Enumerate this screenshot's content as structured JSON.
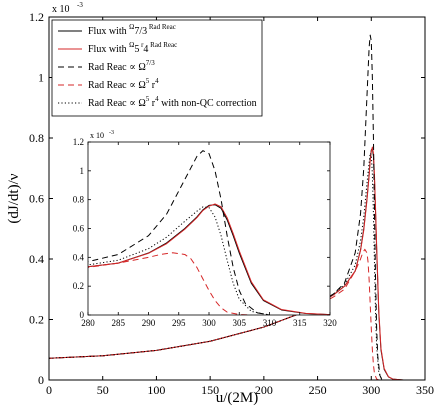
{
  "chart_data": [
    {
      "type": "line",
      "xlabel": "u/(2M)",
      "ylabel": "(dJ/dt)/ν",
      "y_exponent_label": "x 10",
      "y_exponent_power": "-3",
      "xlim": [
        0,
        350
      ],
      "ylim": [
        0,
        1.2
      ],
      "x_ticks": [
        "0",
        "50",
        "100",
        "150",
        "200",
        "250",
        "300",
        "350"
      ],
      "y_ticks": [
        "0",
        "0.2",
        "0.4",
        "0.6",
        "0.8",
        "1",
        "1.2"
      ],
      "legend_position": "top-left",
      "series": [
        {
          "name": "Flux with Ω^7/3 Rad Reac",
          "legend_parts": [
            "Flux with ",
            "Ω",
            "7/3",
            " Rad Reac"
          ],
          "color": "#000000",
          "dash": "solid",
          "x": [
            0,
            50,
            100,
            150,
            200,
            230,
            250,
            265,
            275,
            285,
            290,
            293,
            296,
            298,
            299,
            300,
            301,
            302,
            303,
            304,
            305,
            307,
            309,
            312,
            316,
            320,
            330
          ],
          "y": [
            0.072,
            0.08,
            0.098,
            0.128,
            0.175,
            0.215,
            0.25,
            0.282,
            0.31,
            0.36,
            0.43,
            0.5,
            0.6,
            0.68,
            0.73,
            0.76,
            0.765,
            0.74,
            0.66,
            0.55,
            0.43,
            0.22,
            0.1,
            0.035,
            0.01,
            0.003,
            0.0
          ]
        },
        {
          "name": "Flux with Ω^5 r^4 Rad Reac",
          "legend_parts": [
            "Flux with ",
            "Ω",
            "5",
            " r",
            "4",
            " Rad Reac"
          ],
          "color": "#d62728",
          "dash": "solid",
          "x": [
            0,
            50,
            100,
            150,
            200,
            230,
            250,
            265,
            275,
            285,
            290,
            293,
            296,
            298,
            299,
            300,
            301,
            302,
            303,
            304,
            305,
            307,
            309,
            312,
            316,
            320,
            330
          ],
          "y": [
            0.072,
            0.08,
            0.098,
            0.128,
            0.175,
            0.215,
            0.25,
            0.282,
            0.31,
            0.36,
            0.428,
            0.495,
            0.595,
            0.675,
            0.725,
            0.755,
            0.77,
            0.75,
            0.675,
            0.565,
            0.445,
            0.23,
            0.105,
            0.038,
            0.011,
            0.003,
            0.0
          ]
        },
        {
          "name": "Rad Reac ∝ Ω^7/3",
          "legend_parts": [
            "Rad Reac  ∝ Ω",
            "7/3",
            "",
            "",
            "",
            ""
          ],
          "color": "#000000",
          "dash": "dashed",
          "x": [
            0,
            50,
            100,
            150,
            200,
            230,
            250,
            265,
            275,
            285,
            290,
            293,
            295,
            297,
            298,
            299,
            300,
            301,
            302,
            303,
            304,
            305,
            306,
            308,
            310
          ],
          "y": [
            0.072,
            0.08,
            0.098,
            0.128,
            0.175,
            0.215,
            0.25,
            0.285,
            0.32,
            0.42,
            0.55,
            0.7,
            0.86,
            1.02,
            1.1,
            1.14,
            1.12,
            1.0,
            0.8,
            0.55,
            0.33,
            0.17,
            0.08,
            0.015,
            0.0
          ]
        },
        {
          "name": "Rad Reac ∝ Ω^5 r^4",
          "legend_parts": [
            "Rad Reac  ∝ Ω",
            "5",
            " r",
            "4",
            "",
            ""
          ],
          "color": "#d62728",
          "dash": "dashed",
          "x": [
            0,
            50,
            100,
            150,
            200,
            230,
            250,
            265,
            275,
            285,
            290,
            292,
            294,
            296,
            297,
            298,
            299,
            300,
            301,
            302,
            303,
            305,
            307
          ],
          "y": [
            0.072,
            0.08,
            0.098,
            0.128,
            0.175,
            0.215,
            0.245,
            0.275,
            0.3,
            0.36,
            0.4,
            0.42,
            0.432,
            0.42,
            0.39,
            0.33,
            0.25,
            0.17,
            0.1,
            0.05,
            0.02,
            0.003,
            0.0
          ]
        },
        {
          "name": "Rad Reac ∝ Ω^5 r^4 with non-QC correction",
          "legend_parts": [
            "Rad Reac  ∝ Ω",
            "5",
            " r",
            "4",
            " with non-QC correction",
            ""
          ],
          "color": "#000000",
          "dash": "dotted",
          "x": [
            0,
            50,
            100,
            150,
            200,
            230,
            250,
            265,
            275,
            285,
            290,
            293,
            296,
            298,
            299,
            300,
            301,
            302,
            303,
            304,
            305,
            307,
            310
          ],
          "y": [
            0.072,
            0.08,
            0.098,
            0.128,
            0.175,
            0.215,
            0.25,
            0.285,
            0.315,
            0.38,
            0.46,
            0.54,
            0.65,
            0.72,
            0.75,
            0.745,
            0.68,
            0.55,
            0.38,
            0.22,
            0.11,
            0.025,
            0.0
          ]
        }
      ]
    },
    {
      "type": "line",
      "role": "inset",
      "y_exponent_label": "x 10",
      "y_exponent_power": "-3",
      "xlim": [
        280,
        320
      ],
      "ylim": [
        0,
        1.2
      ],
      "x_ticks": [
        "280",
        "285",
        "290",
        "295",
        "300",
        "305",
        "310",
        "315",
        "320"
      ],
      "y_ticks": [
        "0",
        "0.2",
        "0.4",
        "0.6",
        "0.8",
        "1",
        "1.2"
      ],
      "series_ref": "same five series as main plot"
    }
  ]
}
